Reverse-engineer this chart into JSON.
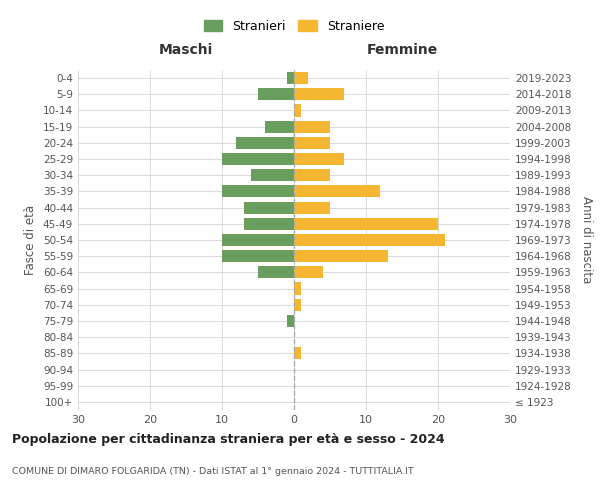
{
  "age_groups": [
    "100+",
    "95-99",
    "90-94",
    "85-89",
    "80-84",
    "75-79",
    "70-74",
    "65-69",
    "60-64",
    "55-59",
    "50-54",
    "45-49",
    "40-44",
    "35-39",
    "30-34",
    "25-29",
    "20-24",
    "15-19",
    "10-14",
    "5-9",
    "0-4"
  ],
  "birth_years": [
    "≤ 1923",
    "1924-1928",
    "1929-1933",
    "1934-1938",
    "1939-1943",
    "1944-1948",
    "1949-1953",
    "1954-1958",
    "1959-1963",
    "1964-1968",
    "1969-1973",
    "1974-1978",
    "1979-1983",
    "1984-1988",
    "1989-1993",
    "1994-1998",
    "1999-2003",
    "2004-2008",
    "2009-2013",
    "2014-2018",
    "2019-2023"
  ],
  "maschi": [
    0,
    0,
    0,
    0,
    0,
    1,
    0,
    0,
    5,
    10,
    10,
    7,
    7,
    10,
    6,
    10,
    8,
    4,
    0,
    5,
    1
  ],
  "femmine": [
    0,
    0,
    0,
    1,
    0,
    0,
    1,
    1,
    4,
    13,
    21,
    20,
    5,
    12,
    5,
    7,
    5,
    5,
    1,
    7,
    2
  ],
  "color_maschi": "#6a9e5e",
  "color_femmine": "#f5b731",
  "legend_maschi": "Stranieri",
  "legend_femmine": "Straniere",
  "title_maschi": "Maschi",
  "title_femmine": "Femmine",
  "ylabel_left": "Fasce di età",
  "ylabel_right": "Anni di nascita",
  "xlim": 30,
  "main_title": "Popolazione per cittadinanza straniera per età e sesso - 2024",
  "subtitle": "COMUNE DI DIMARO FOLGARIDA (TN) - Dati ISTAT al 1° gennaio 2024 - TUTTITALIA.IT",
  "background_color": "#ffffff",
  "grid_color": "#cccccc",
  "dashed_line_color": "#aaaaaa"
}
